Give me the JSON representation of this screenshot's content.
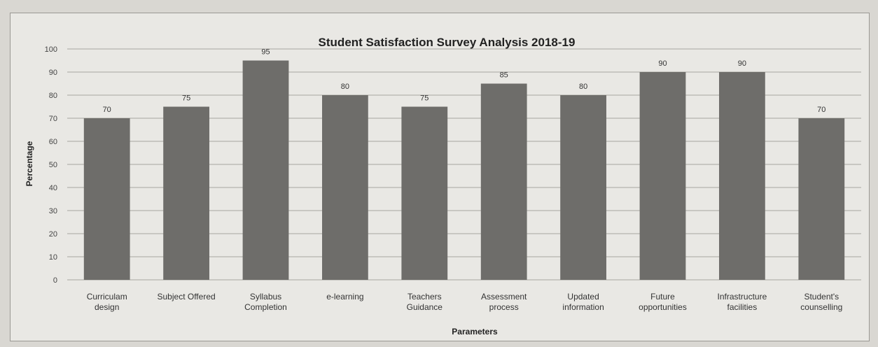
{
  "chart_data": {
    "type": "bar",
    "title": "Student Satisfaction Survey Analysis 2018-19",
    "xlabel": "Parameters",
    "ylabel": "Percentage",
    "ylim": [
      0,
      100
    ],
    "yticks": [
      0,
      10,
      20,
      30,
      40,
      50,
      60,
      70,
      80,
      90,
      100
    ],
    "grid": true,
    "legend": "none",
    "bar_color": "#6e6d6a",
    "categories": [
      [
        "Curriculam",
        "design"
      ],
      [
        "Subject Offered"
      ],
      [
        "Syllabus",
        "Completion"
      ],
      [
        "e-learning"
      ],
      [
        "Teachers",
        "Guidance"
      ],
      [
        "Assessment",
        "process"
      ],
      [
        "Updated",
        "information"
      ],
      [
        "Future",
        "opportunities"
      ],
      [
        "Infrastructure",
        "facilities"
      ],
      [
        "Student's",
        "counselling"
      ]
    ],
    "values": [
      70,
      75,
      95,
      80,
      75,
      85,
      80,
      90,
      90,
      70
    ]
  }
}
